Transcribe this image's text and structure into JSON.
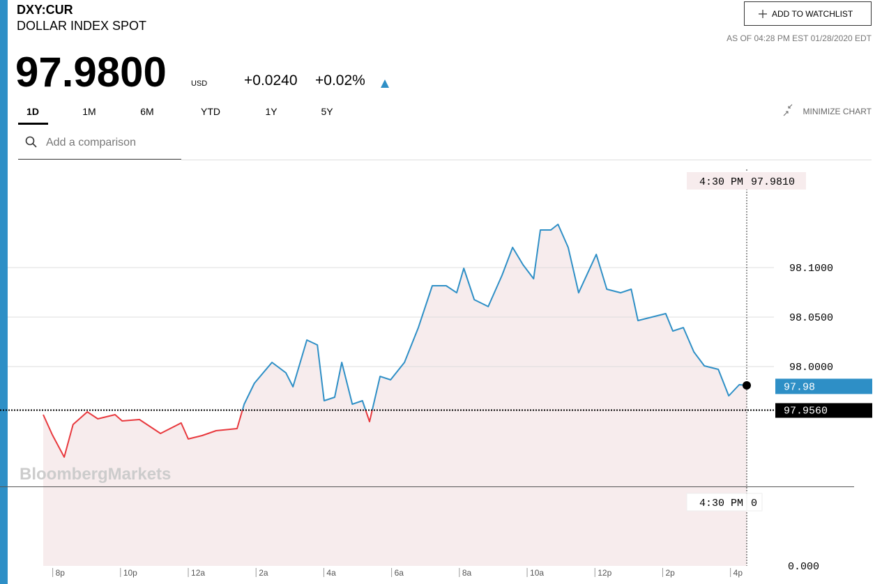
{
  "header": {
    "symbol": "DXY:CUR",
    "name": "DOLLAR INDEX SPOT",
    "price": "97.9800",
    "currency": "USD",
    "change": "+0.0240",
    "change_percent": "+0.02%",
    "as_of": "AS OF 04:28 PM EST 01/28/2020 EDT",
    "watchlist_button": "ADD TO WATCHLIST"
  },
  "tabs": [
    "1D",
    "1M",
    "6M",
    "YTD",
    "1Y",
    "5Y"
  ],
  "minimize": "MINIMIZE CHART",
  "comparison_placeholder": "Add a comparison",
  "watermark": "BloombergMarkets",
  "chart_data": {
    "type": "line",
    "x": [
      -4.28,
      -4.01,
      -3.66,
      -3.4,
      -2.98,
      -2.67,
      -2.16,
      -1.95,
      -1.44,
      -0.82,
      -0.21,
      0,
      0.41,
      0.82,
      1.44,
      1.65,
      1.95,
      2.47,
      2.88,
      3.09,
      3.5,
      3.81,
      4.01,
      4.32,
      4.53,
      4.84,
      5.14,
      5.35,
      5.66,
      5.97,
      6.38,
      6.79,
      7.2,
      7.61,
      7.92,
      8.13,
      8.44,
      8.85,
      9.26,
      9.57,
      9.88,
      10.19,
      10.39,
      10.7,
      10.91,
      11.21,
      11.52,
      12.04,
      12.35,
      12.76,
      13.07,
      13.27,
      13.68,
      14.09,
      14.3,
      14.61,
      14.92,
      15.23,
      15.64,
      15.95,
      16.26,
      16.48
    ],
    "values": [
      97.9514,
      97.931,
      97.9085,
      97.9415,
      97.9542,
      97.9472,
      97.9514,
      97.9451,
      97.9465,
      97.9324,
      97.943,
      97.9268,
      97.9303,
      97.9352,
      97.9373,
      97.962,
      97.9831,
      98.0042,
      97.9937,
      97.9796,
      98.0268,
      98.0218,
      97.9655,
      97.969,
      98.0042,
      97.962,
      97.9655,
      97.9444,
      97.9901,
      97.9866,
      98.0042,
      98.0394,
      98.0817,
      98.0817,
      98.0746,
      98.0993,
      98.0676,
      98.0606,
      98.0923,
      98.1204,
      98.1028,
      98.0887,
      98.138,
      98.138,
      98.1437,
      98.1204,
      98.0746,
      98.1134,
      98.0782,
      98.0746,
      98.0782,
      98.0465,
      98.05,
      98.0535,
      98.0359,
      98.0394,
      98.0148,
      98.0007,
      97.9972,
      97.9704,
      97.9817,
      97.981
    ],
    "color_up": "#2e8fc6",
    "color_down": "#e8383d",
    "area_color": "#f7eced",
    "xlim": [
      -4.28,
      16.48
    ],
    "xticks": [
      {
        "value": -4,
        "label": "8p"
      },
      {
        "value": -2,
        "label": "10p"
      },
      {
        "value": 0,
        "label": "12a"
      },
      {
        "value": 2,
        "label": "2a"
      },
      {
        "value": 4,
        "label": "4a"
      },
      {
        "value": 6,
        "label": "6a"
      },
      {
        "value": 8,
        "label": "8a"
      },
      {
        "value": 10,
        "label": "10a"
      },
      {
        "value": 12,
        "label": "12p"
      },
      {
        "value": 14,
        "label": "2p"
      },
      {
        "value": 16,
        "label": "4p"
      }
    ],
    "ylim": [
      97.88,
      98.2
    ],
    "yticks": [
      {
        "value": 98.0,
        "label": "98.0000"
      },
      {
        "value": 98.05,
        "label": "98.0500"
      },
      {
        "value": 98.1,
        "label": "98.1000"
      }
    ],
    "grid": true,
    "previous_close": {
      "value": 97.956,
      "label": "97.9560"
    },
    "current": 97.98,
    "crosshair": {
      "time": "4:30 PM",
      "value": {
        "value": 97.981,
        "label": "97.9810"
      },
      "volume": 0
    },
    "volume_yticks": [
      {
        "value": 0,
        "label": "0.000"
      }
    ]
  }
}
